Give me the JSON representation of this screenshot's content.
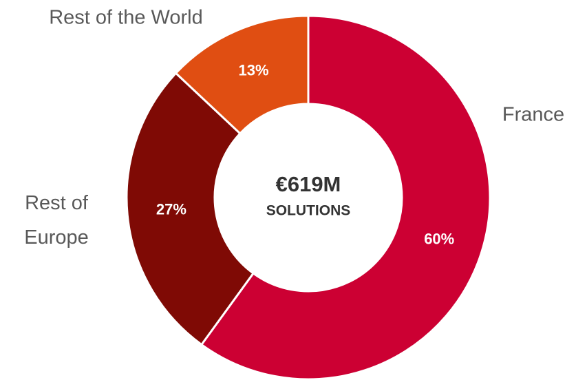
{
  "chart_data": {
    "type": "donut",
    "categories": [
      "France",
      "Rest of Europe",
      "Rest of the World"
    ],
    "values": [
      60,
      27,
      13
    ],
    "value_labels": [
      "60%",
      "27%",
      "13%"
    ],
    "colors": [
      "#cc0033",
      "#7f0a05",
      "#e04e12"
    ],
    "annotations": [
      "€619M",
      "SOLUTIONS"
    ]
  }
}
